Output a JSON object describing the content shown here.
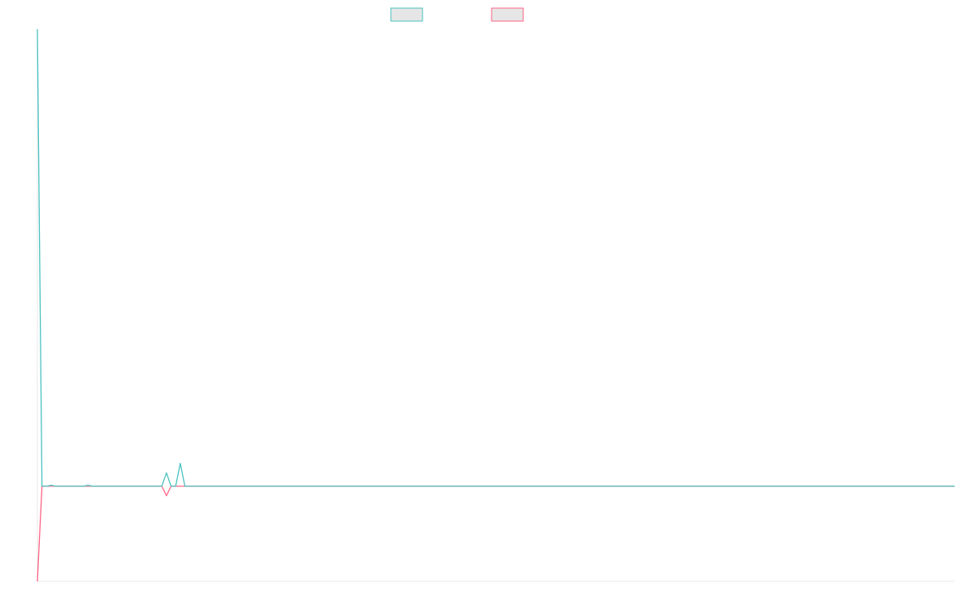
{
  "colors": {
    "series_a": "#4bc0c0",
    "series_b": "#ff6384",
    "legend_fill": "#e6e6e6",
    "axis": "#e8e8e8",
    "background": "#ffffff"
  },
  "chart_data": {
    "type": "line",
    "title": "",
    "xlabel": "",
    "ylabel": "",
    "grid": false,
    "legend_position": "top-center",
    "x_count": 200,
    "ylim": [
      -100,
      480
    ],
    "series": [
      {
        "color_key": "series_a",
        "points": [
          [
            0,
            480
          ],
          [
            1,
            0
          ],
          [
            2,
            0
          ],
          [
            3,
            1
          ],
          [
            4,
            0
          ],
          [
            10,
            0
          ],
          [
            11,
            1
          ],
          [
            12,
            0
          ],
          [
            27,
            0
          ],
          [
            28,
            14
          ],
          [
            29,
            0
          ],
          [
            30,
            0
          ],
          [
            31,
            24
          ],
          [
            32,
            0
          ],
          [
            199,
            0
          ]
        ]
      },
      {
        "color_key": "series_b",
        "points": [
          [
            0,
            -100
          ],
          [
            1,
            0
          ],
          [
            27,
            0
          ],
          [
            28,
            -10
          ],
          [
            29,
            0
          ],
          [
            199,
            0
          ]
        ]
      }
    ]
  }
}
